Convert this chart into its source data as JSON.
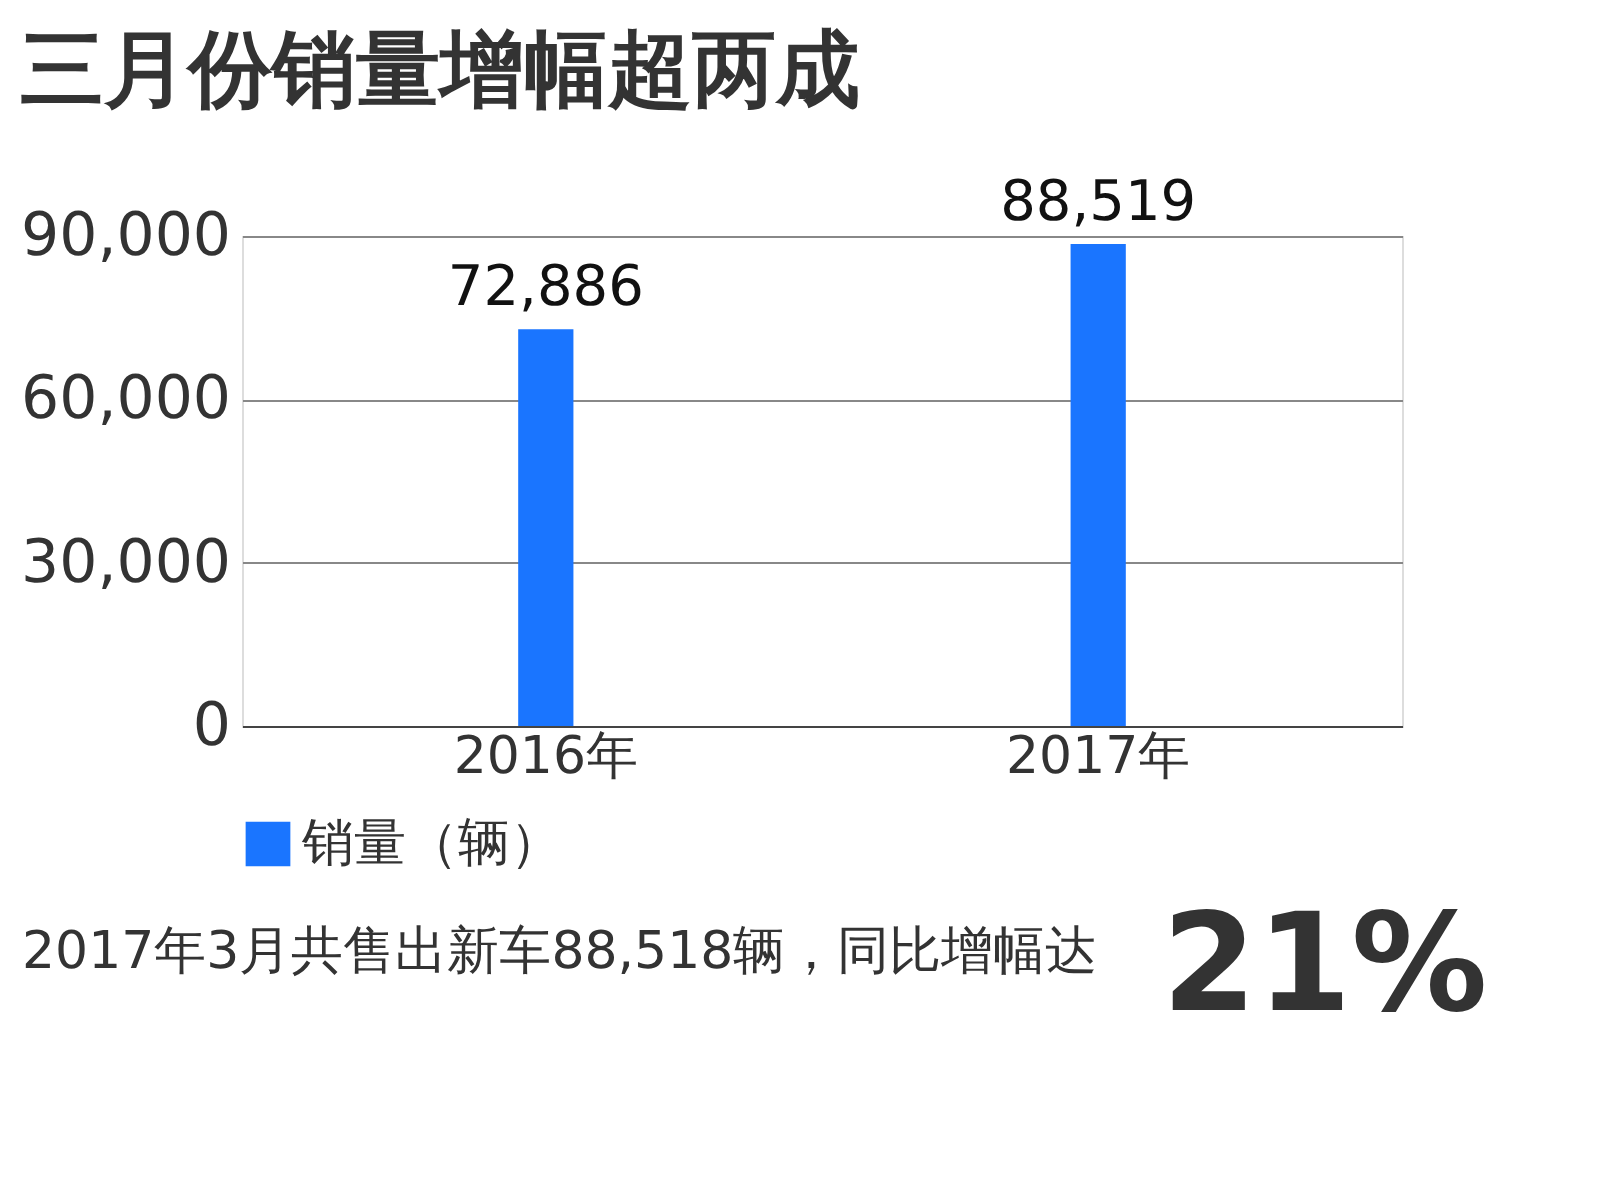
{
  "chart_data": {
    "type": "bar",
    "title": "三月份销量增幅超两成",
    "categories": [
      "2016年",
      "2017年"
    ],
    "series": [
      {
        "name": "销量（辆）",
        "color": "#1a75ff",
        "values": [
          72886,
          88519
        ],
        "value_labels": [
          "72,886",
          "88,519"
        ]
      }
    ],
    "ylim": [
      0,
      90000
    ],
    "yticks": [
      0,
      {
        "value": 30000,
        "label": "30,000"
      },
      {
        "value": 60000,
        "label": "60,000"
      },
      {
        "value": 90000,
        "label": "90,000"
      }
    ],
    "grid": "y",
    "legend": "bottom",
    "annotations": [
      "2017年3月共售出新车88,518辆，同比增幅达",
      "21%"
    ]
  }
}
